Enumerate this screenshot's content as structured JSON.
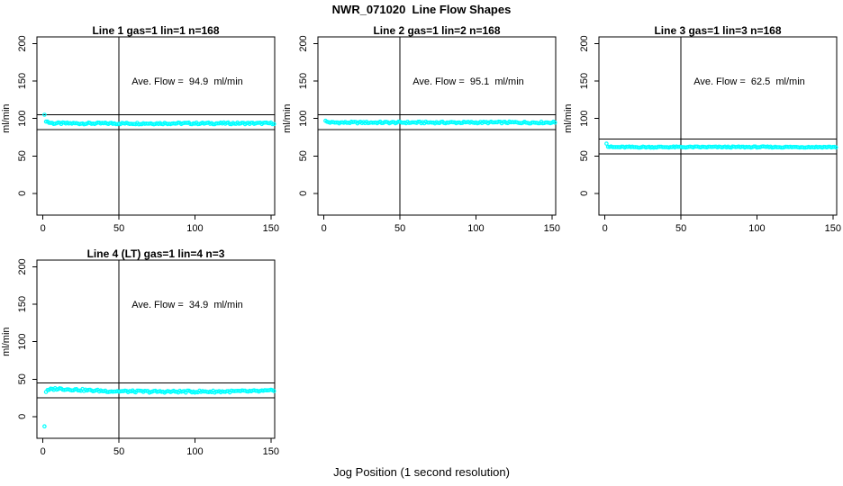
{
  "figure": {
    "title": "NWR_071020  Line Flow Shapes",
    "xlabel": "Jog Position (1 second resolution)"
  },
  "colors": {
    "points": "#00FFFF",
    "axis": "#000000",
    "background": "#FFFFFF",
    "text": "#000000"
  },
  "axes": {
    "ylabel": "ml/min",
    "y_ticks": [
      0,
      50,
      100,
      150,
      200
    ],
    "x_ticks": [
      0,
      50,
      100,
      150
    ],
    "xlim": [
      -4,
      152.5
    ],
    "ylim": [
      -29,
      209
    ],
    "grid": false
  },
  "chart_data": [
    {
      "type": "scatter",
      "title": "Line 1 gas=1 lin=1 n=168",
      "annotation": "Ave. Flow =  94.9  ml/min",
      "avg_flow_ml_min": 94.9,
      "ref_lines_y": [
        104.9,
        84.9
      ],
      "vline_x": 50,
      "specials": [
        [
          1,
          105
        ]
      ],
      "band": {
        "x_start": 2,
        "x_end": 152,
        "x_step": 1,
        "jitter": 1.2,
        "trend": [
          [
            2,
            97
          ],
          [
            4,
            94.5
          ],
          [
            7,
            93.6
          ],
          [
            30,
            93.4
          ],
          [
            152,
            93.6
          ]
        ]
      }
    },
    {
      "type": "scatter",
      "title": "Line 2 gas=1 lin=2 n=168",
      "annotation": "Ave. Flow =  95.1  ml/min",
      "avg_flow_ml_min": 95.1,
      "ref_lines_y": [
        105.1,
        85.1
      ],
      "vline_x": 50,
      "specials": [
        [
          1,
          97
        ]
      ],
      "band": {
        "x_start": 2,
        "x_end": 152,
        "x_step": 1,
        "jitter": 1.2,
        "trend": [
          [
            2,
            95.5
          ],
          [
            5,
            94.6
          ],
          [
            152,
            94.7
          ]
        ]
      }
    },
    {
      "type": "scatter",
      "title": "Line 3 gas=1 lin=3 n=168",
      "annotation": "Ave. Flow =  62.5  ml/min",
      "avg_flow_ml_min": 62.5,
      "ref_lines_y": [
        72.5,
        52.5
      ],
      "vline_x": 50,
      "specials": [
        [
          1,
          66.5
        ]
      ],
      "band": {
        "x_start": 2,
        "x_end": 152,
        "x_step": 1,
        "jitter": 0.8,
        "trend": [
          [
            2,
            62.4
          ],
          [
            5,
            61.8
          ],
          [
            152,
            61.9
          ]
        ]
      }
    },
    {
      "type": "scatter",
      "title": "Line 4 (LT) gas=1 lin=4 n=3",
      "annotation": "Ave. Flow =  34.9  ml/min",
      "avg_flow_ml_min": 34.9,
      "ref_lines_y": [
        44.9,
        24.9
      ],
      "vline_x": 50,
      "specials": [
        [
          1,
          -13
        ]
      ],
      "band": {
        "x_start": 2,
        "x_end": 152,
        "x_step": 1,
        "jitter": 1.4,
        "trend": [
          [
            2,
            33.5
          ],
          [
            5,
            36.2
          ],
          [
            9,
            37.3
          ],
          [
            15,
            36.7
          ],
          [
            30,
            35
          ],
          [
            45,
            33.9
          ],
          [
            70,
            33.3
          ],
          [
            110,
            33.4
          ],
          [
            140,
            33.8
          ],
          [
            152,
            34.6
          ]
        ]
      }
    }
  ]
}
